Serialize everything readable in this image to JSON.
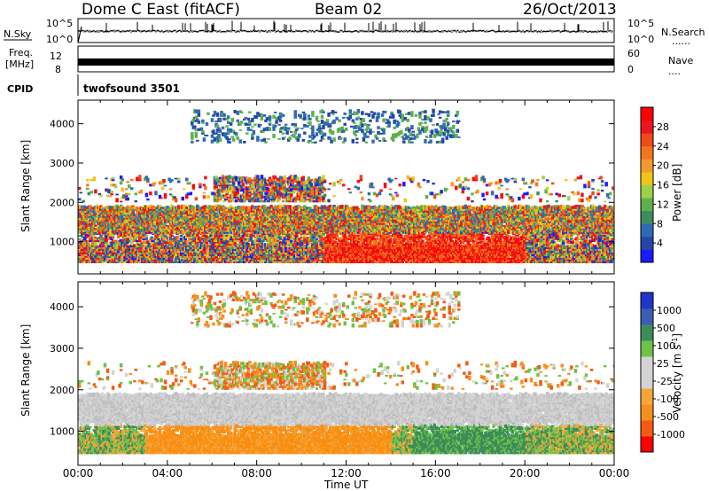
{
  "header": {
    "station": "Dome C East (fitACF)",
    "beam": "Beam 02",
    "date": "26/Oct/2013"
  },
  "noise_panel": {
    "left_label": "N.Sky",
    "right_label": "N.Search",
    "right_dots": "......",
    "left_ticks": [
      "10^5",
      "10^0"
    ],
    "right_ticks": [
      "10^5",
      "10^0"
    ]
  },
  "freq_panel": {
    "left_label_1": "Freq.",
    "left_label_2": "[MHz]",
    "right_label": "Nave",
    "right_dots": "....",
    "left_ticks": [
      "12",
      "8"
    ],
    "right_ticks": [
      "60",
      "0"
    ]
  },
  "cpid_panel": {
    "label": "CPID",
    "value": "twofsound 3501"
  },
  "colors": {
    "power_scale": [
      "#1a1aff",
      "#2346a8",
      "#2f6bb4",
      "#3d8c60",
      "#5fb04d",
      "#9cd14a",
      "#f0c419",
      "#f29a2e",
      "#f4731c",
      "#ef4a1a",
      "#e8181a",
      "#ff0000"
    ],
    "velocity_scale": [
      "#ff0000",
      "#f45a14",
      "#f4911e",
      "#f6a53a",
      "#d4d4d4",
      "#d4d4d4",
      "#6ec24a",
      "#3c8c5a",
      "#3a5fb0",
      "#2035c8"
    ]
  },
  "chart_data": [
    {
      "type": "heatmap",
      "title": "",
      "xlabel": "",
      "ylabel": "Slant Range [km]",
      "colorbar_label": "Power [dB]",
      "colorbar_ticks": [
        "4",
        "8",
        "12",
        "16",
        "20",
        "24",
        "28"
      ],
      "xlim": [
        0,
        24
      ],
      "ylim": [
        180,
        4600
      ],
      "yticks": [
        "1000",
        "2000",
        "3000",
        "4000"
      ],
      "xticks": [
        "00:00",
        "04:00",
        "08:00",
        "12:00",
        "16:00",
        "20:00",
        "00:00"
      ]
    },
    {
      "type": "heatmap",
      "title": "",
      "xlabel": "Time UT",
      "ylabel": "Slant Range [km]",
      "colorbar_label": "Velocity [m s^-1]",
      "colorbar_ticks": [
        "-1000",
        "-500",
        "-100",
        "-25",
        "25",
        "100",
        "500",
        "1000"
      ],
      "xlim": [
        0,
        24
      ],
      "ylim": [
        180,
        4600
      ],
      "yticks": [
        "1000",
        "2000",
        "3000",
        "4000"
      ],
      "xticks": [
        "00:00",
        "04:00",
        "08:00",
        "12:00",
        "16:00",
        "20:00",
        "00:00"
      ]
    }
  ]
}
